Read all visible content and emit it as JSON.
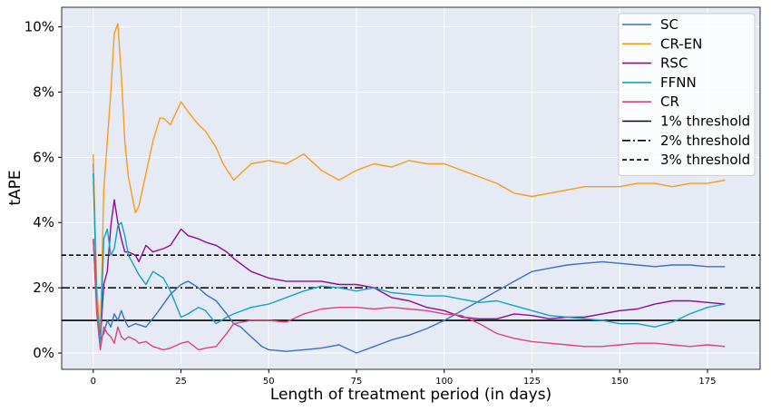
{
  "chart_data": {
    "type": "line",
    "xlabel": "Length of treatment period (in days)",
    "ylabel": "tAPE",
    "xlim": [
      -9,
      190
    ],
    "ylim": [
      -0.5,
      10.6
    ],
    "x_ticks": [
      0,
      25,
      50,
      75,
      100,
      125,
      150,
      175
    ],
    "x_tick_labels": [
      "0",
      "25",
      "50",
      "75",
      "100",
      "125",
      "150",
      "175"
    ],
    "y_ticks": [
      0,
      2,
      4,
      6,
      8,
      10
    ],
    "y_tick_labels": [
      "0%",
      "2%",
      "4%",
      "6%",
      "8%",
      "10%"
    ],
    "grid": true,
    "legend_position": "top-right",
    "colors": {
      "SC": "#3a70c6",
      "CR-EN": "#f59d1c",
      "RSC": "#8e0c95",
      "FFNN": "#15a2c2",
      "CR": "#dc447b",
      "threshold": "#000000",
      "plot_background": "#e5eaf4",
      "grid": "#ffffff"
    },
    "series": [
      {
        "name": "SC",
        "x": [
          0,
          1,
          2,
          3,
          4,
          5,
          6,
          7,
          8,
          9,
          10,
          12,
          15,
          18,
          20,
          22,
          25,
          27,
          30,
          32,
          35,
          38,
          40,
          42,
          45,
          48,
          50,
          55,
          60,
          65,
          70,
          75,
          80,
          85,
          90,
          95,
          100,
          105,
          110,
          115,
          120,
          125,
          130,
          135,
          140,
          145,
          150,
          155,
          160,
          165,
          170,
          175,
          180
        ],
        "y": [
          5.8,
          1.5,
          0.4,
          0.6,
          1.0,
          0.8,
          1.2,
          1.0,
          1.3,
          1.0,
          0.8,
          0.9,
          0.8,
          1.2,
          1.5,
          1.8,
          2.1,
          2.2,
          2.0,
          1.8,
          1.6,
          1.2,
          0.9,
          0.8,
          0.5,
          0.2,
          0.1,
          0.05,
          0.1,
          0.15,
          0.25,
          0.0,
          0.2,
          0.4,
          0.55,
          0.75,
          1.0,
          1.3,
          1.6,
          1.9,
          2.2,
          2.5,
          2.6,
          2.7,
          2.75,
          2.8,
          2.75,
          2.7,
          2.65,
          2.7,
          2.7,
          2.65,
          2.65
        ]
      },
      {
        "name": "CR-EN",
        "x": [
          0,
          1,
          2,
          3,
          4,
          5,
          6,
          7,
          8,
          9,
          10,
          12,
          13,
          15,
          17,
          19,
          20,
          22,
          25,
          27,
          30,
          32,
          35,
          37,
          40,
          45,
          50,
          55,
          60,
          65,
          70,
          75,
          80,
          85,
          90,
          95,
          100,
          105,
          110,
          115,
          120,
          125,
          130,
          135,
          140,
          145,
          150,
          155,
          160,
          165,
          170,
          175,
          180
        ],
        "y": [
          6.1,
          2.0,
          0.5,
          5.0,
          6.5,
          8.0,
          9.8,
          10.1,
          8.5,
          6.5,
          5.4,
          4.3,
          4.5,
          5.5,
          6.5,
          7.2,
          7.2,
          7.0,
          7.7,
          7.4,
          7.0,
          6.8,
          6.3,
          5.8,
          5.3,
          5.8,
          5.9,
          5.8,
          6.1,
          5.6,
          5.3,
          5.6,
          5.8,
          5.7,
          5.9,
          5.8,
          5.8,
          5.6,
          5.4,
          5.2,
          4.9,
          4.8,
          4.9,
          5.0,
          5.1,
          5.1,
          5.1,
          5.2,
          5.2,
          5.1,
          5.2,
          5.2,
          5.3
        ]
      },
      {
        "name": "RSC",
        "x": [
          0,
          1,
          2,
          3,
          4,
          5,
          6,
          7,
          8,
          9,
          10,
          12,
          13,
          15,
          17,
          20,
          22,
          25,
          27,
          30,
          32,
          35,
          38,
          40,
          45,
          50,
          55,
          60,
          65,
          70,
          75,
          80,
          85,
          90,
          95,
          100,
          105,
          110,
          115,
          120,
          125,
          130,
          135,
          140,
          145,
          150,
          155,
          160,
          165,
          170,
          175,
          180
        ],
        "y": [
          3.5,
          1.4,
          0.4,
          2.1,
          2.5,
          3.9,
          4.7,
          4.0,
          3.5,
          3.1,
          3.1,
          3.0,
          2.8,
          3.3,
          3.1,
          3.2,
          3.3,
          3.8,
          3.6,
          3.5,
          3.4,
          3.3,
          3.1,
          2.9,
          2.5,
          2.3,
          2.2,
          2.2,
          2.2,
          2.1,
          2.1,
          2.0,
          1.7,
          1.6,
          1.4,
          1.3,
          1.1,
          1.05,
          1.05,
          1.2,
          1.15,
          1.05,
          1.1,
          1.1,
          1.2,
          1.3,
          1.35,
          1.5,
          1.6,
          1.6,
          1.55,
          1.5
        ]
      },
      {
        "name": "FFNN",
        "x": [
          0,
          1,
          2,
          3,
          4,
          5,
          6,
          7,
          8,
          9,
          10,
          12,
          13,
          15,
          17,
          20,
          22,
          25,
          27,
          30,
          32,
          35,
          38,
          40,
          45,
          50,
          55,
          60,
          65,
          70,
          75,
          80,
          85,
          90,
          95,
          100,
          105,
          110,
          115,
          120,
          125,
          130,
          135,
          140,
          145,
          150,
          155,
          160,
          165,
          170,
          175,
          180
        ],
        "y": [
          5.5,
          1.5,
          0.3,
          3.5,
          3.8,
          3.0,
          3.2,
          3.9,
          4.0,
          3.6,
          3.0,
          2.6,
          2.4,
          2.1,
          2.5,
          2.3,
          1.9,
          1.1,
          1.2,
          1.4,
          1.3,
          0.9,
          1.1,
          1.2,
          1.4,
          1.5,
          1.7,
          1.9,
          2.05,
          2.0,
          1.9,
          2.0,
          1.85,
          1.8,
          1.75,
          1.75,
          1.65,
          1.55,
          1.6,
          1.45,
          1.3,
          1.15,
          1.1,
          1.05,
          1.0,
          0.9,
          0.9,
          0.8,
          0.95,
          1.2,
          1.4,
          1.5
        ]
      },
      {
        "name": "CR",
        "x": [
          0,
          1,
          2,
          3,
          4,
          5,
          6,
          7,
          8,
          9,
          10,
          12,
          13,
          15,
          17,
          20,
          22,
          25,
          27,
          30,
          32,
          35,
          38,
          40,
          45,
          50,
          55,
          60,
          65,
          70,
          75,
          80,
          85,
          90,
          95,
          100,
          105,
          110,
          115,
          120,
          125,
          130,
          135,
          140,
          145,
          150,
          155,
          160,
          165,
          170,
          175,
          180
        ],
        "y": [
          3.5,
          1.2,
          0.1,
          0.8,
          0.6,
          0.5,
          0.3,
          0.8,
          0.5,
          0.4,
          0.5,
          0.4,
          0.3,
          0.35,
          0.2,
          0.1,
          0.15,
          0.3,
          0.35,
          0.1,
          0.15,
          0.2,
          0.6,
          0.9,
          1.0,
          1.0,
          0.95,
          1.2,
          1.35,
          1.4,
          1.4,
          1.35,
          1.4,
          1.35,
          1.3,
          1.2,
          1.15,
          0.9,
          0.6,
          0.45,
          0.35,
          0.3,
          0.25,
          0.2,
          0.2,
          0.25,
          0.3,
          0.3,
          0.25,
          0.2,
          0.25,
          0.2
        ]
      }
    ],
    "thresholds": [
      {
        "name": "1% threshold",
        "value": 1,
        "style": "solid"
      },
      {
        "name": "2% threshold",
        "value": 2,
        "style": "dashdot"
      },
      {
        "name": "3% threshold",
        "value": 3,
        "style": "dashed"
      }
    ]
  }
}
